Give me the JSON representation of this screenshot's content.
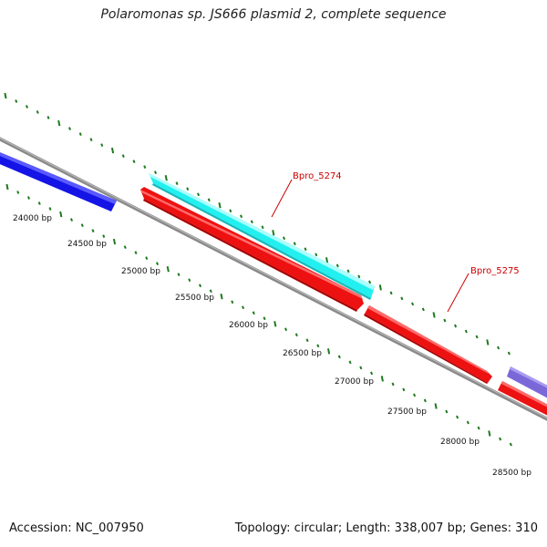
{
  "title": "Polaromonas sp. JS666 plasmid 2, complete sequence",
  "footer": {
    "accession": "Accession: NC_007950",
    "summary": "Topology: circular; Length: 338,007 bp; Genes: 310"
  },
  "colors": {
    "backbone": "#7f7f7f",
    "tick": "#1f7a1f",
    "label_red": "#cc0000",
    "gene_blue": "#1414e6",
    "gene_cyan": "#22f0f0",
    "gene_red": "#ee1111",
    "gene_purple": "#7b68d8"
  },
  "scale_labels": [
    "24000 bp",
    "24500 bp",
    "25000 bp",
    "25500 bp",
    "26000 bp",
    "26500 bp",
    "27000 bp",
    "27500 bp",
    "28000 bp",
    "28500 bp"
  ],
  "genes": [
    {
      "id": "gene-blue-left",
      "color_key": "gene_blue",
      "name": ""
    },
    {
      "id": "gene-cyan",
      "color_key": "gene_cyan",
      "name": "Bpro_5274"
    },
    {
      "id": "gene-red-1",
      "color_key": "gene_red",
      "name": ""
    },
    {
      "id": "gene-red-2",
      "color_key": "gene_red",
      "name": "Bpro_5275"
    },
    {
      "id": "gene-red-right",
      "color_key": "gene_red",
      "name": ""
    },
    {
      "id": "gene-purple-right",
      "color_key": "gene_purple",
      "name": ""
    }
  ],
  "gene_labels": [
    "Bpro_5274",
    "Bpro_5275"
  ]
}
